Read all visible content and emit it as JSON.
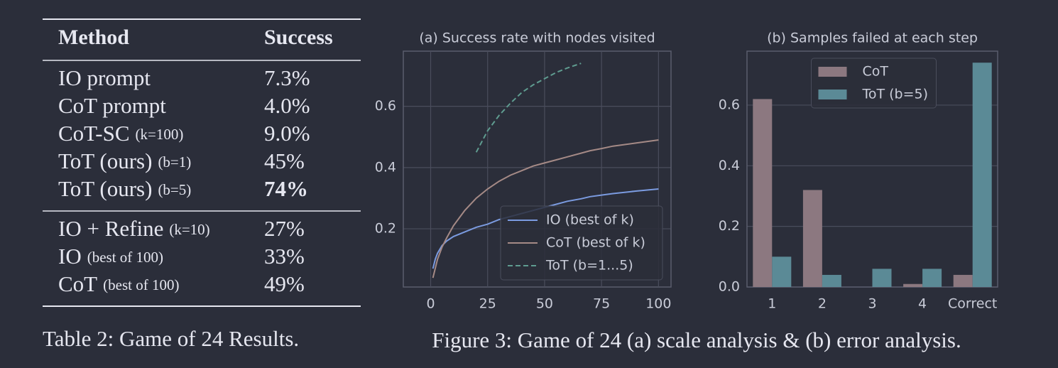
{
  "table": {
    "header": [
      "Method",
      "Success"
    ],
    "groups": [
      [
        {
          "method": "IO prompt",
          "success": "7.3%"
        },
        {
          "method": "CoT prompt",
          "success": "4.0%"
        },
        {
          "method": "CoT-SC",
          "note": "(k=100)",
          "success": "9.0%"
        },
        {
          "method": "ToT (ours)",
          "note": "(b=1)",
          "success": "45%"
        },
        {
          "method": "ToT (ours)",
          "note": "(b=5)",
          "success": "74%",
          "bold": true
        }
      ],
      [
        {
          "method": "IO + Refine",
          "note": "(k=10)",
          "success": "27%"
        },
        {
          "method": "IO",
          "note": "(best of 100)",
          "success": "33%"
        },
        {
          "method": "CoT",
          "note": "(best of 100)",
          "success": "49%"
        }
      ]
    ],
    "caption": "Table 2: Game of 24 Results."
  },
  "figure_caption": "Figure 3: Game of 24 (a) scale analysis & (b) error analysis.",
  "chart_data": [
    {
      "type": "line",
      "title": "(a) Success rate with nodes visited",
      "x": [
        1,
        2,
        3,
        5,
        7,
        10,
        15,
        20,
        25,
        30,
        35,
        40,
        45,
        50,
        55,
        60,
        66,
        70,
        75,
        80,
        90,
        100
      ],
      "series": [
        {
          "name": "IO (best of k)",
          "color": "#7b9be0",
          "dash": false,
          "values": [
            0.07,
            0.1,
            0.12,
            0.145,
            0.16,
            0.175,
            0.19,
            0.205,
            0.215,
            0.23,
            0.24,
            0.25,
            0.26,
            0.27,
            0.28,
            0.29,
            0.298,
            0.305,
            0.31,
            0.315,
            0.323,
            0.33
          ]
        },
        {
          "name": "CoT (best of k)",
          "color": "#a58a86",
          "dash": false,
          "values": [
            0.04,
            0.07,
            0.1,
            0.14,
            0.17,
            0.21,
            0.26,
            0.3,
            0.33,
            0.355,
            0.375,
            0.39,
            0.405,
            0.415,
            0.425,
            0.435,
            0.447,
            0.455,
            0.462,
            0.47,
            0.48,
            0.49
          ]
        },
        {
          "name": "ToT (b=1...5)",
          "color": "#5f9c90",
          "dash": true,
          "values": [
            null,
            null,
            null,
            null,
            null,
            null,
            null,
            0.45,
            0.52,
            0.57,
            0.61,
            0.645,
            0.67,
            0.69,
            0.71,
            0.725,
            0.74,
            null,
            null,
            null,
            null,
            null
          ]
        }
      ],
      "xlim": [
        -12,
        105.5
      ],
      "xticks": [
        0,
        25,
        50,
        75,
        100
      ],
      "ylim": [
        0.01,
        0.78
      ],
      "yticks": [
        0.2,
        0.4,
        0.6
      ],
      "grid": true,
      "legend": "lower right"
    },
    {
      "type": "bar",
      "title": "(b) Samples failed at each step",
      "categories": [
        "1",
        "2",
        "3",
        "4",
        "Correct"
      ],
      "series": [
        {
          "name": "CoT",
          "color": "#8c7880",
          "values": [
            0.62,
            0.32,
            0,
            0.01,
            0.04
          ]
        },
        {
          "name": "ToT (b=5)",
          "color": "#5b8a96",
          "values": [
            0.1,
            0.04,
            0.06,
            0.06,
            0.74
          ]
        }
      ],
      "ylim": [
        0,
        0.778
      ],
      "yticks": [
        {
          "value": 0,
          "label": "0.0"
        },
        0.2,
        0.4,
        0.6
      ],
      "grid": true,
      "legend": "upper center"
    }
  ]
}
